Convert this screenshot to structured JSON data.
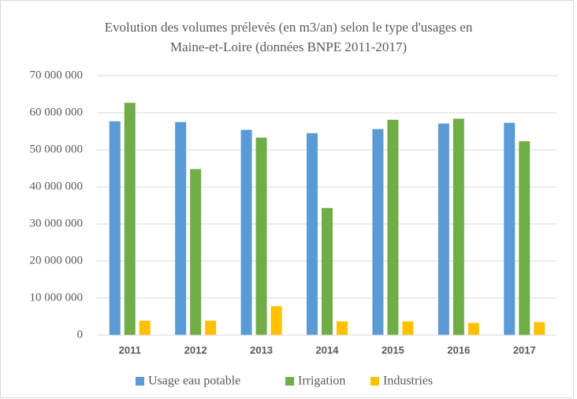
{
  "chart_data": {
    "type": "bar",
    "title": [
      "Evolution des volumes prélevés (en m3/an) selon le type d'usages en",
      "Maine-et-Loire (données BNPE 2011-2017)"
    ],
    "categories": [
      "2011",
      "2012",
      "2013",
      "2014",
      "2015",
      "2016",
      "2017"
    ],
    "series": [
      {
        "name": "Usage eau potable",
        "color": "#5b9bd5",
        "values": [
          57700000,
          57500000,
          55400000,
          54500000,
          55600000,
          57100000,
          57300000
        ]
      },
      {
        "name": "Irrigation",
        "color": "#70ad47",
        "values": [
          62700000,
          44800000,
          53300000,
          34300000,
          58100000,
          58400000,
          52300000
        ]
      },
      {
        "name": "Industries",
        "color": "#ffc000",
        "values": [
          3900000,
          3900000,
          7800000,
          3700000,
          3700000,
          3300000,
          3500000
        ]
      }
    ],
    "ylim": [
      0,
      70000000
    ],
    "yticks": [
      {
        "value": 0,
        "label": "0"
      },
      {
        "value": 10000000,
        "label": "10 000 000"
      },
      {
        "value": 20000000,
        "label": "20 000 000"
      },
      {
        "value": 30000000,
        "label": "30 000 000"
      },
      {
        "value": 40000000,
        "label": "40 000 000"
      },
      {
        "value": 50000000,
        "label": "50 000 000"
      },
      {
        "value": 60000000,
        "label": "60 000 000"
      },
      {
        "value": 70000000,
        "label": "70 000 000"
      }
    ],
    "grid": true,
    "legend": "bottom"
  }
}
